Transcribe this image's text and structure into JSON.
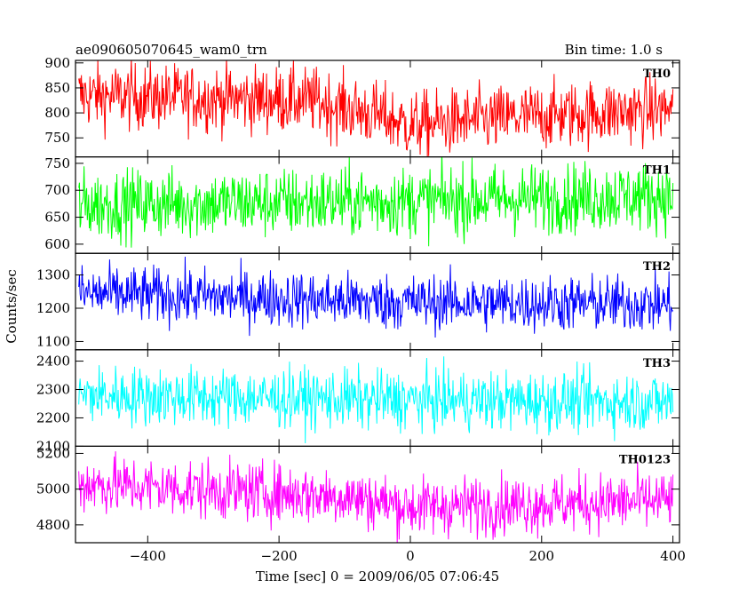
{
  "header": {
    "title": "ae090605070645_wam0_trn",
    "bin_time": "Bin time: 1.0 s"
  },
  "axes": {
    "xlabel": "Time [sec] 0 = 2009/06/05 07:06:45",
    "ylabel": "Counts/sec"
  },
  "chart_data": {
    "type": "line",
    "title": "ae090605070645_wam0_trn",
    "xlabel": "Time [sec] 0 = 2009/06/05 07:06:45",
    "ylabel": "Counts/sec",
    "xlim": [
      -510,
      410
    ],
    "x_range": [
      -505,
      400
    ],
    "x_ticks": [
      -400,
      -200,
      0,
      200,
      400
    ],
    "x_tick_labels": [
      "−400",
      "−200",
      "0",
      "200",
      "400"
    ],
    "panels": [
      {
        "name": "TH0",
        "color": "#ff0000",
        "ylim": [
          712,
          905
        ],
        "y_ticks": [
          750,
          800,
          850,
          900
        ],
        "trend": [
          [
            -505,
            835
          ],
          [
            -150,
            825
          ],
          [
            -50,
            795
          ],
          [
            0,
            775
          ],
          [
            150,
            790
          ],
          [
            400,
            808
          ]
        ],
        "noise": 33
      },
      {
        "name": "TH1",
        "color": "#00ff00",
        "ylim": [
          583,
          762
        ],
        "y_ticks": [
          600,
          650,
          700,
          750
        ],
        "trend": [
          [
            -505,
            673
          ],
          [
            0,
            680
          ],
          [
            400,
            690
          ]
        ],
        "noise": 32
      },
      {
        "name": "TH2",
        "color": "#0000ff",
        "ylim": [
          1075,
          1365
        ],
        "y_ticks": [
          1100,
          1200,
          1300
        ],
        "trend": [
          [
            -505,
            1245
          ],
          [
            0,
            1218
          ],
          [
            400,
            1212
          ]
        ],
        "noise": 42
      },
      {
        "name": "TH3",
        "color": "#00ffff",
        "ylim": [
          2100,
          2440
        ],
        "y_ticks": [
          2100,
          2200,
          2300,
          2400
        ],
        "trend": [
          [
            -505,
            2280
          ],
          [
            0,
            2262
          ],
          [
            400,
            2256
          ]
        ],
        "noise": 52
      },
      {
        "name": "TH0123",
        "color": "#ff00ff",
        "ylim": [
          4700,
          5240
        ],
        "y_ticks": [
          4800,
          5000,
          5200
        ],
        "trend": [
          [
            -505,
            5030
          ],
          [
            -100,
            4960
          ],
          [
            0,
            4900
          ],
          [
            400,
            4935
          ]
        ],
        "noise": 82
      }
    ],
    "grid": false,
    "legend": "none"
  }
}
